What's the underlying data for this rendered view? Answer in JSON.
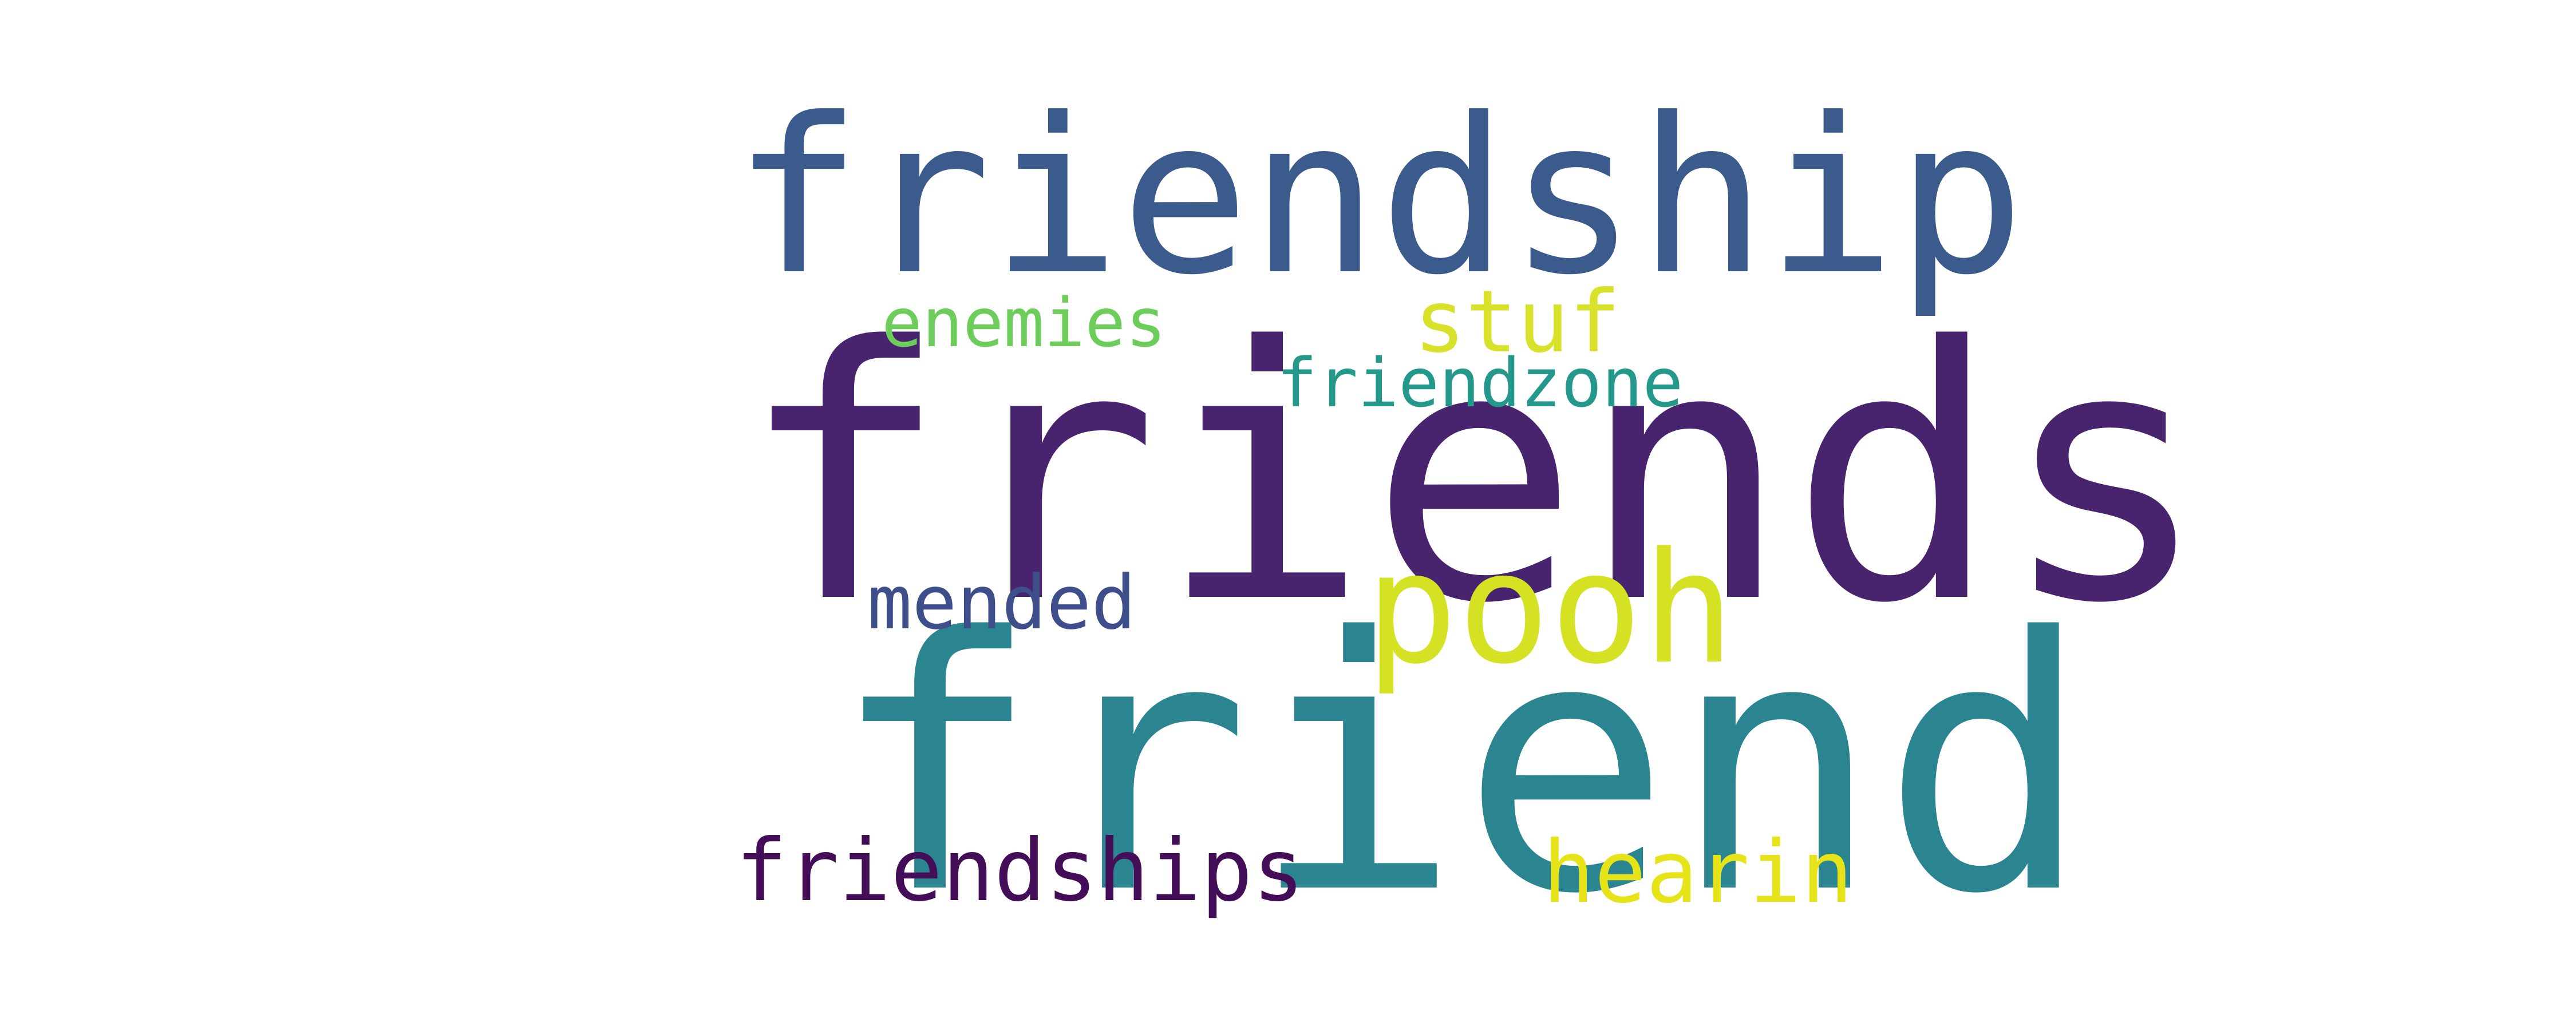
{
  "cloud": {
    "words": [
      {
        "id": "friendship",
        "text": "friendship",
        "color": "#3b5b8c"
      },
      {
        "id": "friends",
        "text": "friends",
        "color": "#48246f"
      },
      {
        "id": "friend",
        "text": "friend",
        "color": "#2b8590"
      },
      {
        "id": "pooh",
        "text": "pooh",
        "color": "#d4e223"
      },
      {
        "id": "enemies",
        "text": "enemies",
        "color": "#6ccd5a"
      },
      {
        "id": "stuf",
        "text": "stuf",
        "color": "#d9e22b"
      },
      {
        "id": "friendzone",
        "text": "friendzone",
        "color": "#24988a"
      },
      {
        "id": "mended",
        "text": "mended",
        "color": "#3d4e8a"
      },
      {
        "id": "friendships",
        "text": "friendships",
        "color": "#440d57"
      },
      {
        "id": "hearin",
        "text": "hearin",
        "color": "#e6e419"
      }
    ]
  }
}
